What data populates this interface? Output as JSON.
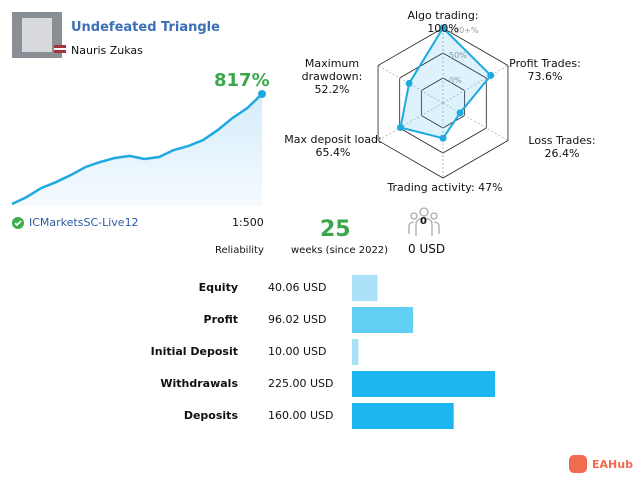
{
  "header": {
    "title": "Undefeated Triangle",
    "author": "Nauris Zukas"
  },
  "growth": {
    "value_label": "817%",
    "values": [
      0,
      52,
      119,
      163,
      215,
      275,
      312,
      342,
      357,
      334,
      349,
      401,
      431,
      475,
      550,
      639,
      713,
      817
    ]
  },
  "account": {
    "broker": "ICMarketsSC-Live12",
    "leverage": "1:500"
  },
  "stats": {
    "reliability": "Reliability",
    "weeks": 25,
    "weeks_label": "weeks (since 2022)",
    "subscribers": 0,
    "price": "0 USD"
  },
  "radar": {
    "ring_labels": [
      "100+%",
      "50%",
      "0%"
    ],
    "axes": [
      {
        "label": "Algo trading: 100%",
        "value": 100
      },
      {
        "label": "Profit Trades: 73.6%",
        "value": 73.6
      },
      {
        "label": "Loss Trades: 26.4%",
        "value": 26.4
      },
      {
        "label": "Trading activity: 47%",
        "value": 47
      },
      {
        "label": "Max deposit load: 65.4%",
        "value": 65.4
      },
      {
        "label": "Maximum drawdown: 52.2%",
        "value": 52.2
      }
    ]
  },
  "bars": {
    "rows": [
      {
        "label": "Equity",
        "value_label": "40.06 USD",
        "value": 40.06,
        "color": "#a9e2f8"
      },
      {
        "label": "Profit",
        "value_label": "96.02 USD",
        "value": 96.02,
        "color": "#5fcff4"
      },
      {
        "label": "Initial Deposit",
        "value_label": "10.00 USD",
        "value": 10,
        "color": "#a9e2f8"
      },
      {
        "label": "Withdrawals",
        "value_label": "225.00 USD",
        "value": 225,
        "color": "#1eb6ee"
      },
      {
        "label": "Deposits",
        "value_label": "160.00 USD",
        "value": 160,
        "color": "#1eb6ee"
      }
    ]
  },
  "watermark": "EAHub"
}
